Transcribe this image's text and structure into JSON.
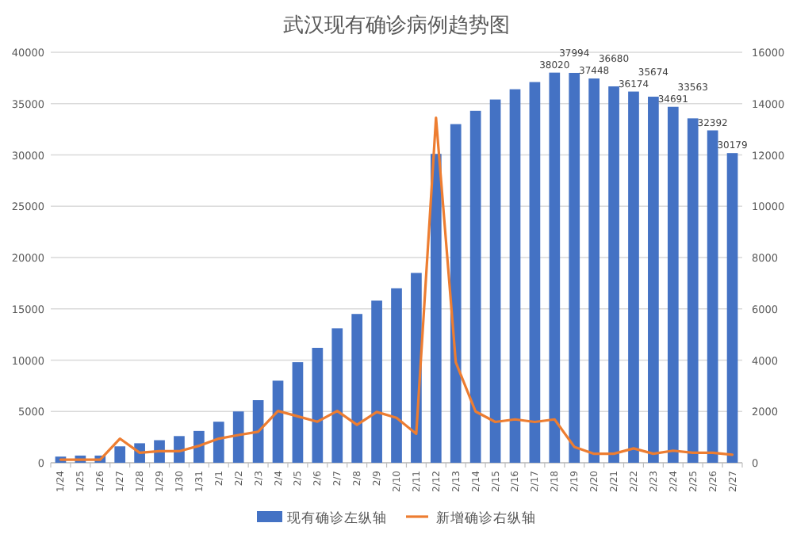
{
  "chart_data": {
    "type": "bar",
    "title": "武汉现有确诊病例趋势图",
    "categories": [
      "1/24",
      "1/25",
      "1/26",
      "1/27",
      "1/28",
      "1/29",
      "1/30",
      "1/31",
      "2/1",
      "2/2",
      "2/3",
      "2/4",
      "2/5",
      "2/6",
      "2/7",
      "2/8",
      "2/9",
      "2/10",
      "2/11",
      "2/12",
      "2/13",
      "2/14",
      "2/15",
      "2/16",
      "2/17",
      "2/18",
      "2/19",
      "2/20",
      "2/21",
      "2/22",
      "2/23",
      "2/24",
      "2/25",
      "2/26",
      "2/27"
    ],
    "series": [
      {
        "name": "现有确诊左纵轴",
        "color": "#4472c4",
        "values": [
          600,
          700,
          700,
          1600,
          1900,
          2200,
          2600,
          3100,
          4000,
          5000,
          6100,
          8000,
          9800,
          11200,
          13100,
          14500,
          15800,
          17000,
          18500,
          30100,
          33000,
          34300,
          35400,
          36400,
          37100,
          38020,
          37994,
          37448,
          36680,
          36174,
          35674,
          34691,
          33563,
          32392,
          30179
        ],
        "value_labels": [
          null,
          null,
          null,
          null,
          null,
          null,
          null,
          null,
          null,
          null,
          null,
          null,
          null,
          null,
          null,
          null,
          null,
          null,
          null,
          null,
          null,
          null,
          null,
          null,
          null,
          "38020",
          "37994",
          "37448",
          "36680",
          "36174",
          "35674",
          "34691",
          "33563",
          "32392",
          "30179"
        ]
      },
      {
        "name": "新增确诊右纵轴",
        "type": "line",
        "axis": "y2",
        "color": "#ed7d31",
        "values": [
          120,
          120,
          120,
          940,
          390,
          450,
          450,
          660,
          940,
          1080,
          1210,
          2020,
          1810,
          1600,
          2020,
          1480,
          1980,
          1750,
          1130,
          13450,
          3920,
          2000,
          1590,
          1690,
          1590,
          1690,
          620,
          350,
          350,
          560,
          350,
          470,
          390,
          390,
          310
        ]
      }
    ],
    "ylim": [
      0,
      40000
    ],
    "yticks": [
      0,
      5000,
      10000,
      15000,
      20000,
      25000,
      30000,
      35000,
      40000
    ],
    "y2lim": [
      0,
      16000
    ],
    "y2ticks": [
      0,
      2000,
      4000,
      6000,
      8000,
      10000,
      12000,
      14000,
      16000
    ],
    "grid": "y",
    "legend": "bottom"
  }
}
